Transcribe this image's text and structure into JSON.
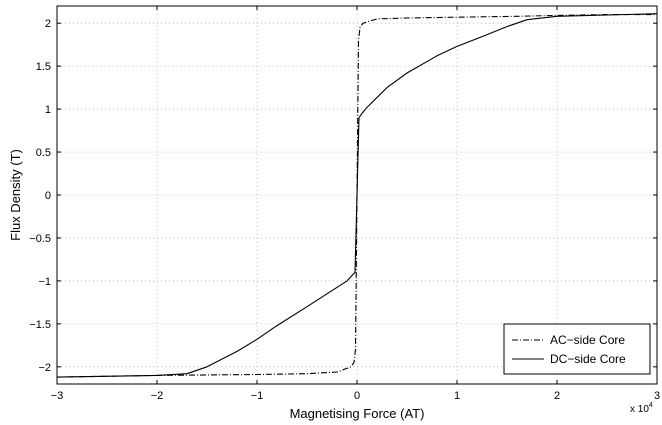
{
  "chart_data": {
    "type": "line",
    "title": "",
    "xlabel": "Magnetising Force (AT)",
    "ylabel": "Flux Density (T)",
    "x_multiplier": "x 10",
    "x_multiplier_exp": "4",
    "xlim": [
      -3,
      3
    ],
    "ylim": [
      -2.2,
      2.2
    ],
    "x_ticks": [
      -3,
      -2,
      -1,
      0,
      1,
      2,
      3
    ],
    "x_tick_labels": [
      "−3",
      "−2",
      "−1",
      "0",
      "1",
      "2",
      "3"
    ],
    "y_ticks": [
      -2,
      -1.5,
      -1,
      -0.5,
      0,
      0.5,
      1,
      1.5,
      2
    ],
    "y_tick_labels": [
      "−2",
      "−1.5",
      "−1",
      "−0.5",
      "0",
      "0.5",
      "1",
      "1.5",
      "2"
    ],
    "grid": true,
    "legend_position": "bottom-right",
    "series": [
      {
        "name": "AC−side Core",
        "style": "dashdot",
        "color": "#000000",
        "x": [
          -3.0,
          -2.0,
          -1.0,
          -0.5,
          -0.2,
          -0.06,
          -0.03,
          -0.015,
          0.0,
          0.015,
          0.03,
          0.06,
          0.2,
          0.5,
          1.0,
          1.6,
          2.0,
          2.5,
          3.0
        ],
        "y": [
          -2.12,
          -2.1,
          -2.09,
          -2.08,
          -2.06,
          -2.0,
          -1.95,
          -1.8,
          0.0,
          1.8,
          1.95,
          2.0,
          2.05,
          2.06,
          2.07,
          2.08,
          2.09,
          2.1,
          2.1
        ]
      },
      {
        "name": "DC−side Core",
        "style": "solid",
        "color": "#000000",
        "x": [
          -3.0,
          -2.0,
          -1.7,
          -1.5,
          -1.2,
          -1.0,
          -0.8,
          -0.5,
          -0.3,
          -0.1,
          -0.02,
          0.0,
          0.02,
          0.05,
          0.1,
          0.3,
          0.5,
          0.8,
          1.0,
          1.2,
          1.5,
          1.7,
          2.0,
          3.0
        ],
        "y": [
          -2.12,
          -2.1,
          -2.08,
          -2.0,
          -1.82,
          -1.68,
          -1.52,
          -1.3,
          -1.15,
          -1.0,
          -0.9,
          0.0,
          0.9,
          0.95,
          1.02,
          1.25,
          1.42,
          1.62,
          1.73,
          1.82,
          1.96,
          2.04,
          2.08,
          2.11
        ]
      }
    ]
  }
}
